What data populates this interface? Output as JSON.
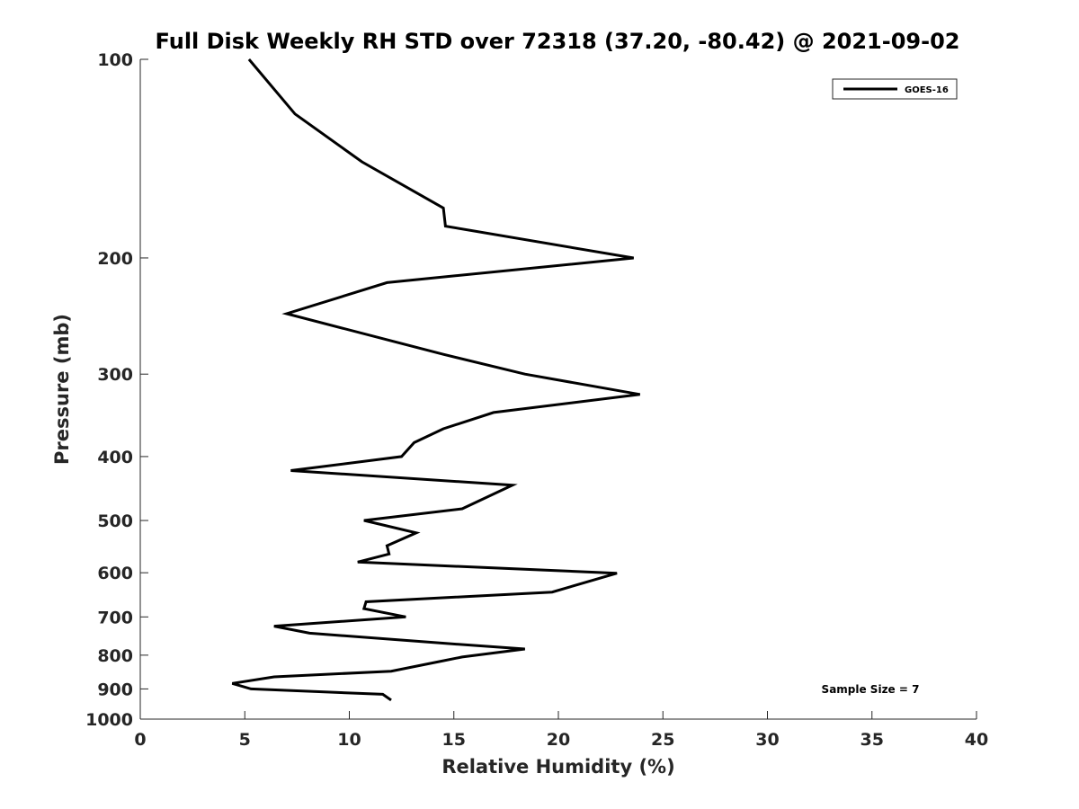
{
  "chart_data": {
    "type": "line",
    "title": "Full Disk Weekly RH STD over 72318 (37.20, -80.42) @ 2021-09-02",
    "xlabel": "Relative Humidity (%)",
    "ylabel": "Pressure (mb)",
    "xlim": [
      0,
      40
    ],
    "ylim": [
      100,
      1000
    ],
    "y_scale": "log",
    "y_reversed": true,
    "grid": false,
    "legend_position": "top-right",
    "x_ticks": [
      "0",
      "5",
      "10",
      "15",
      "20",
      "25",
      "30",
      "35",
      "40"
    ],
    "y_ticks": [
      "100",
      "200",
      "300",
      "400",
      "500",
      "600",
      "700",
      "800",
      "900",
      "1000"
    ],
    "annotation": "Sample Size = 7",
    "series": [
      {
        "name": "GOES-16",
        "color": "#000000",
        "points": [
          {
            "x": 5.2,
            "y": 100
          },
          {
            "x": 7.4,
            "y": 121
          },
          {
            "x": 10.6,
            "y": 143
          },
          {
            "x": 14.5,
            "y": 168
          },
          {
            "x": 14.6,
            "y": 179
          },
          {
            "x": 23.6,
            "y": 200
          },
          {
            "x": 11.8,
            "y": 218
          },
          {
            "x": 7.0,
            "y": 243
          },
          {
            "x": 14.5,
            "y": 280
          },
          {
            "x": 18.4,
            "y": 300
          },
          {
            "x": 23.9,
            "y": 322
          },
          {
            "x": 16.9,
            "y": 343
          },
          {
            "x": 14.5,
            "y": 363
          },
          {
            "x": 13.1,
            "y": 381
          },
          {
            "x": 12.5,
            "y": 400
          },
          {
            "x": 7.2,
            "y": 420
          },
          {
            "x": 17.8,
            "y": 442
          },
          {
            "x": 15.4,
            "y": 480
          },
          {
            "x": 10.7,
            "y": 500
          },
          {
            "x": 13.2,
            "y": 522
          },
          {
            "x": 11.8,
            "y": 546
          },
          {
            "x": 11.9,
            "y": 562
          },
          {
            "x": 10.4,
            "y": 578
          },
          {
            "x": 22.8,
            "y": 601
          },
          {
            "x": 19.7,
            "y": 642
          },
          {
            "x": 10.8,
            "y": 664
          },
          {
            "x": 10.7,
            "y": 680
          },
          {
            "x": 12.7,
            "y": 700
          },
          {
            "x": 6.4,
            "y": 723
          },
          {
            "x": 8.1,
            "y": 741
          },
          {
            "x": 14.4,
            "y": 767
          },
          {
            "x": 18.4,
            "y": 783
          },
          {
            "x": 15.4,
            "y": 805
          },
          {
            "x": 14.3,
            "y": 818
          },
          {
            "x": 12.0,
            "y": 846
          },
          {
            "x": 6.4,
            "y": 863
          },
          {
            "x": 4.4,
            "y": 883
          },
          {
            "x": 5.3,
            "y": 900
          },
          {
            "x": 11.6,
            "y": 917
          },
          {
            "x": 12.0,
            "y": 936
          }
        ]
      }
    ]
  }
}
